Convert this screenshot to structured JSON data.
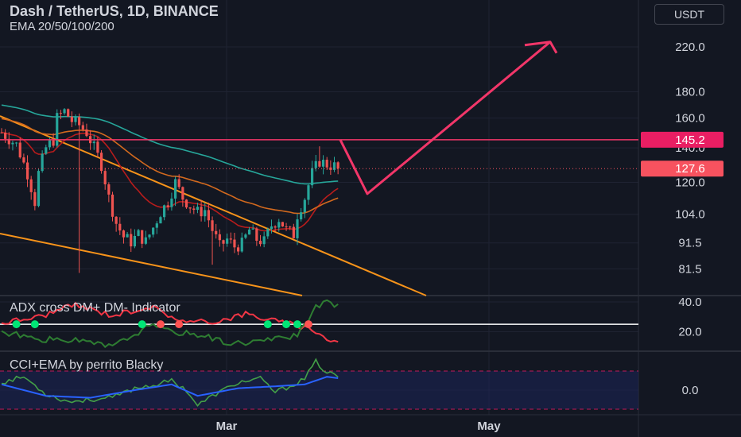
{
  "header": {
    "symbol_line": "Dash / TetherUS, 1D, BINANCE",
    "indicator_line": "EMA 20/50/100/200",
    "currency_button": "USDT"
  },
  "panes": {
    "adx_title": "ADX cross DM+ DM- Indicator",
    "cci_title": "CCI+EMA by perrito Blacky"
  },
  "colors": {
    "background": "#131722",
    "up_candle": "#26a69a",
    "down_candle": "#ef5350",
    "trendline": "#f7931a",
    "resistance_line": "#f23669",
    "arrow": "#f23669",
    "ema_teal": "#26a69a",
    "ema_orange": "#d2691e",
    "ema_red": "#b71c1c",
    "current_price_badge": "#f7525f",
    "adx_green": "#2e7d32",
    "adx_red": "#f23645",
    "cci_blue": "#2962ff"
  },
  "chart_data": [
    {
      "type": "candlestick",
      "pane": "price",
      "y_scale": "log",
      "y_tick_labels": [
        "220.0",
        "180.0",
        "160.0",
        "140.0",
        "120.0",
        "104.0",
        "91.5",
        "81.5"
      ],
      "y_ticks": [
        220.0,
        180.0,
        160.0,
        140.0,
        120.0,
        104.0,
        91.5,
        81.5
      ],
      "x_tick_labels": [
        "Mar",
        "May"
      ],
      "last_price": 127.6,
      "last_price_label": "127.6",
      "resistance_level": 145.2,
      "resistance_label": "145.2",
      "series": [
        {
          "name": "EMA 20",
          "color": "#b71c1c"
        },
        {
          "name": "EMA 50",
          "color": "#d2691e"
        },
        {
          "name": "EMA 100",
          "color": "#26a69a"
        }
      ],
      "projection": [
        "145.2",
        "114",
        "225"
      ]
    },
    {
      "type": "line",
      "pane": "adx",
      "y_tick_labels": [
        "40.0",
        "20.0"
      ],
      "y_ticks": [
        40.0,
        20.0
      ],
      "threshold": 25
    },
    {
      "type": "line",
      "pane": "cci",
      "y_tick_labels": [
        "0.0"
      ],
      "y_ticks": [
        0.0
      ],
      "bands": [
        100,
        -100
      ]
    }
  ]
}
